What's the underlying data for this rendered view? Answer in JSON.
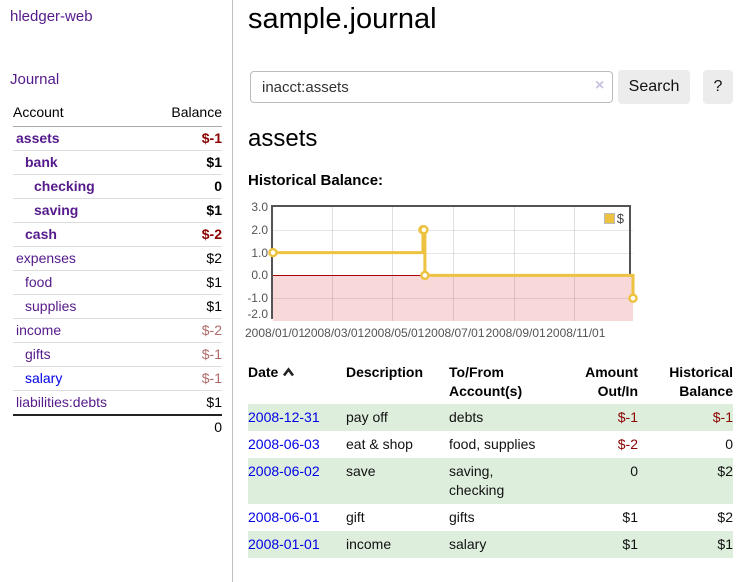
{
  "app": {
    "title": "hledger-web",
    "nav_journal": "Journal"
  },
  "colors": {
    "link_purple": "#551A8B",
    "link_blue": "#0000E6",
    "negative_strong": "#8B0000",
    "negative_muted": "#B06A6A",
    "table_stripe_green": "#DEEEDD",
    "chart_line_gold": "#EDC240",
    "chart_negative_fill": "#F8D8D8",
    "chart_zero_line": "#A40000",
    "chart_border": "#545454",
    "button_bg": "#ECECEC"
  },
  "sidebar": {
    "header": {
      "account": "Account",
      "balance": "Balance"
    },
    "accounts": [
      {
        "name": "assets",
        "balance": "$-1",
        "depth": 1,
        "bold": true,
        "balance_style": "neg-strong"
      },
      {
        "name": "bank",
        "balance": "$1",
        "depth": 2,
        "bold": true,
        "balance_style": "pos-strong"
      },
      {
        "name": "checking",
        "balance": "0",
        "depth": 3,
        "bold": true,
        "balance_style": "pos-strong"
      },
      {
        "name": "saving",
        "balance": "$1",
        "depth": 3,
        "bold": true,
        "balance_style": "pos-strong"
      },
      {
        "name": "cash",
        "balance": "$-2",
        "depth": 2,
        "bold": true,
        "balance_style": "neg-strong"
      },
      {
        "name": "expenses",
        "balance": "$2",
        "depth": 1,
        "bold": false,
        "balance_style": ""
      },
      {
        "name": "food",
        "balance": "$1",
        "depth": 2,
        "bold": false,
        "balance_style": ""
      },
      {
        "name": "supplies",
        "balance": "$1",
        "depth": 2,
        "bold": false,
        "balance_style": ""
      },
      {
        "name": "income",
        "balance": "$-2",
        "depth": 1,
        "bold": false,
        "balance_style": "neg-muted"
      },
      {
        "name": "gifts",
        "balance": "$-1",
        "depth": 2,
        "bold": false,
        "balance_style": "neg-muted"
      },
      {
        "name": "salary",
        "balance": "$-1",
        "depth": 2,
        "bold": false,
        "balance_style": "neg-muted",
        "link_style": "unvisited"
      },
      {
        "name": "liabilities:debts",
        "balance": "$1",
        "depth": 1,
        "bold": false,
        "balance_style": ""
      }
    ],
    "total": "0"
  },
  "header": {
    "title": "sample.journal"
  },
  "search": {
    "value": "inacct:assets",
    "clear_icon": "×",
    "button": "Search",
    "help_button": "?"
  },
  "account_page": {
    "title": "assets",
    "chart_heading": "Historical Balance:"
  },
  "chart_data": {
    "type": "line",
    "title": "Historical Balance:",
    "step": true,
    "series": [
      {
        "name": "$",
        "color": "#EDC240",
        "points": [
          {
            "date": "2008-01-01",
            "day": 0,
            "value": 1
          },
          {
            "date": "2008-06-01",
            "day": 152,
            "value": 2
          },
          {
            "date": "2008-06-02",
            "day": 153,
            "value": 2
          },
          {
            "date": "2008-06-03",
            "day": 154,
            "value": 0
          },
          {
            "date": "2008-12-31",
            "day": 365,
            "value": -1
          }
        ]
      }
    ],
    "x_ticks": [
      {
        "label": "2008/01/01",
        "day": 0
      },
      {
        "label": "2008/03/01",
        "day": 60
      },
      {
        "label": "2008/05/01",
        "day": 121
      },
      {
        "label": "2008/07/01",
        "day": 182
      },
      {
        "label": "2008/09/01",
        "day": 244
      },
      {
        "label": "2008/11/01",
        "day": 305
      }
    ],
    "x_range_days": [
      0,
      365
    ],
    "y_ticks": [
      "3.0",
      "2.0",
      "1.0",
      "0.0",
      "-1.0",
      "-2.0"
    ],
    "ylim": [
      -2,
      3
    ],
    "legend": {
      "label": "$",
      "position": "top-right"
    },
    "negative_region_shaded": true,
    "grid": true
  },
  "register": {
    "columns": [
      "Date",
      "Description",
      "To/From Account(s)",
      "Amount Out/In",
      "Historical Balance"
    ],
    "rows": [
      {
        "date": "2008-12-31",
        "description": "pay off",
        "accounts": "debts",
        "amount": "$-1",
        "amount_neg": true,
        "balance": "$-1",
        "balance_neg": true
      },
      {
        "date": "2008-06-03",
        "description": "eat & shop",
        "accounts": "food, supplies",
        "amount": "$-2",
        "amount_neg": true,
        "balance": "0",
        "balance_neg": false
      },
      {
        "date": "2008-06-02",
        "description": "save",
        "accounts": "saving, checking",
        "amount": "0",
        "amount_neg": false,
        "balance": "$2",
        "balance_neg": false
      },
      {
        "date": "2008-06-01",
        "description": "gift",
        "accounts": "gifts",
        "amount": "$1",
        "amount_neg": false,
        "balance": "$2",
        "balance_neg": false
      },
      {
        "date": "2008-01-01",
        "description": "income",
        "accounts": "salary",
        "amount": "$1",
        "amount_neg": false,
        "balance": "$1",
        "balance_neg": false
      }
    ]
  }
}
